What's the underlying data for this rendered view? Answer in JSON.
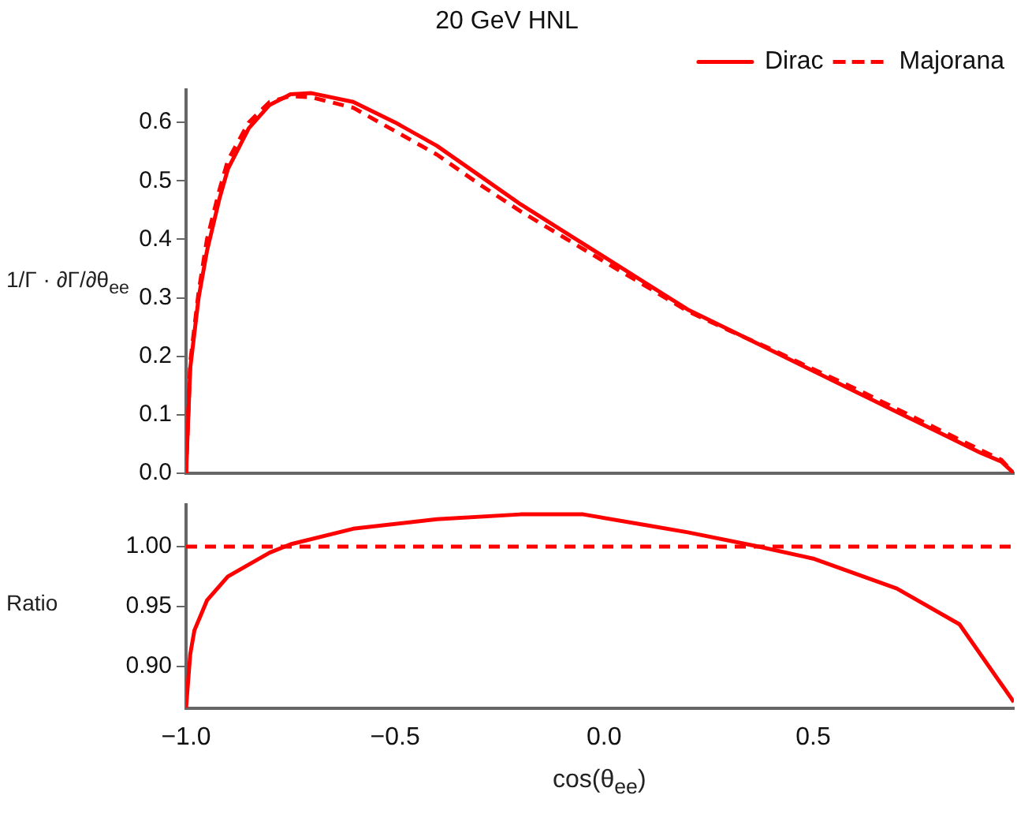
{
  "chart_data": [
    {
      "type": "line",
      "title": "20 GeV HNL",
      "ylabel": "1/Γ · ∂Γ/∂θ$_{ee}$",
      "tick_labels": "y",
      "legend": "top right",
      "grid": false,
      "marker": "none",
      "x": [
        -1,
        -0.99,
        -0.97,
        -0.95,
        -0.92,
        -0.9,
        -0.85,
        -0.8,
        -0.75,
        -0.7,
        -0.6,
        -0.5,
        -0.4,
        -0.3,
        -0.2,
        -0.1,
        0,
        0.1,
        0.2,
        0.3,
        0.4,
        0.5,
        0.6,
        0.7,
        0.8,
        0.9,
        0.95,
        0.98
      ],
      "series": [
        {
          "name": "Dirac",
          "color": "#ff0000",
          "line_style": "solid",
          "values": [
            0,
            0.18,
            0.3,
            0.38,
            0.47,
            0.52,
            0.59,
            0.63,
            0.648,
            0.65,
            0.635,
            0.6,
            0.56,
            0.51,
            0.46,
            0.415,
            0.37,
            0.325,
            0.28,
            0.245,
            0.21,
            0.175,
            0.14,
            0.105,
            0.07,
            0.035,
            0.02,
            0
          ]
        },
        {
          "name": "Majorana",
          "color": "#ff0000",
          "line_style": "dashed",
          "values": [
            0,
            0.19,
            0.31,
            0.4,
            0.485,
            0.535,
            0.6,
            0.635,
            0.645,
            0.643,
            0.625,
            0.585,
            0.545,
            0.495,
            0.448,
            0.405,
            0.362,
            0.32,
            0.277,
            0.244,
            0.212,
            0.178,
            0.145,
            0.11,
            0.075,
            0.04,
            0.023,
            0
          ]
        }
      ],
      "xlim": [
        -1,
        0.98
      ],
      "xticks": [
        {
          "value": -1,
          "label": null
        },
        {
          "value": -0.5,
          "label": null
        },
        {
          "value": 0,
          "label": null
        },
        {
          "value": 0.5,
          "label": null
        }
      ],
      "ylim": [
        0,
        0.655
      ],
      "yticks": [
        {
          "value": 0,
          "label": "0.0"
        },
        0.1,
        0.2,
        0.3,
        0.4,
        0.5,
        0.6
      ]
    },
    {
      "type": "line",
      "xlabel": "cos(θ$_{ee}$)",
      "ylabel": "Ratio",
      "grid": false,
      "marker": "none",
      "legend": false,
      "x": [
        -1,
        -0.99,
        -0.98,
        -0.95,
        -0.9,
        -0.8,
        -0.75,
        -0.6,
        -0.4,
        -0.2,
        -0.05,
        0.1,
        0.2,
        0.37,
        0.5,
        0.7,
        0.85,
        0.98
      ],
      "series": [
        {
          "color": "#ff0000",
          "line_style": "solid",
          "values": [
            0.865,
            0.91,
            0.93,
            0.955,
            0.975,
            0.995,
            1.002,
            1.015,
            1.023,
            1.027,
            1.027,
            1.018,
            1.012,
            1,
            0.99,
            0.965,
            0.935,
            0.87
          ]
        }
      ],
      "ref_lines": [
        {
          "axis": "y",
          "value": 1,
          "color": "#ff0000",
          "line_style": "dashed"
        }
      ],
      "xlim": [
        -1,
        0.98
      ],
      "xticks": [
        {
          "value": -1,
          "label": "−1.0"
        },
        {
          "value": -0.5,
          "label": "−0.5"
        },
        {
          "value": 0,
          "label": "0.0"
        },
        {
          "value": 0.5,
          "label": "0.5"
        }
      ],
      "ylim": [
        0.865,
        1.035
      ],
      "yticks": [
        {
          "value": 0.9,
          "label": "0.90"
        },
        0.95,
        {
          "value": 1,
          "label": "1.00"
        }
      ]
    }
  ]
}
